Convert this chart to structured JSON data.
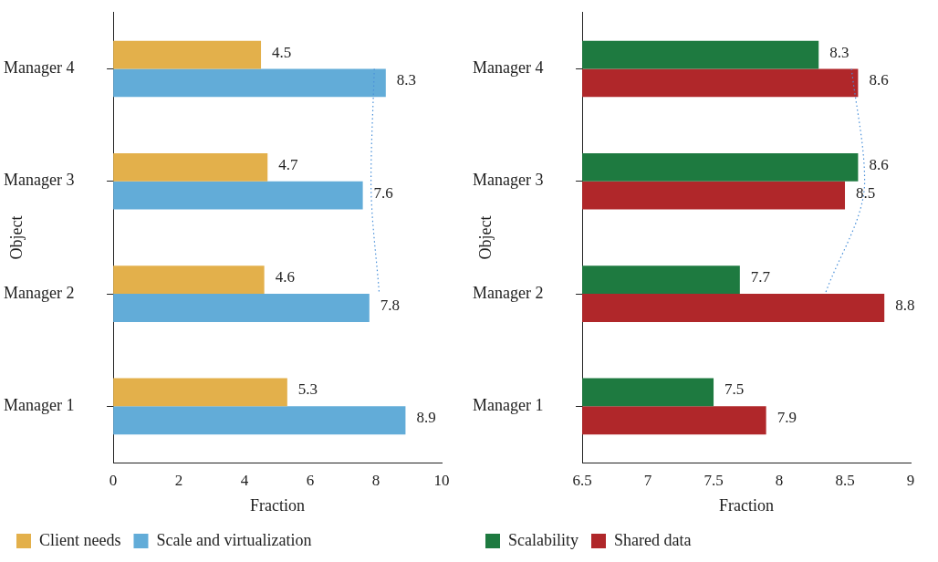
{
  "chart_data": [
    {
      "type": "bar",
      "orientation": "horizontal",
      "xlabel": "Fraction",
      "ylabel": "Object",
      "categories": [
        "Manager 4",
        "Manager 3",
        "Manager 2",
        "Manager 1"
      ],
      "xlim": [
        0,
        10
      ],
      "xticks": [
        0,
        2,
        4,
        6,
        8,
        10
      ],
      "grid": false,
      "legend": "bottom left",
      "series": [
        {
          "name": "Client needs",
          "color": "#e3b04b",
          "values": [
            4.5,
            4.7,
            4.6,
            5.3
          ],
          "value_labels": [
            "4.5",
            "4.7",
            "4.6",
            "5.3"
          ]
        },
        {
          "name": "Scale and virtualization",
          "color": "#62acd8",
          "values": [
            8.3,
            7.6,
            7.8,
            8.9
          ],
          "value_labels": [
            "8.3",
            "7.6",
            "7.8",
            "8.9"
          ]
        },
        {
          "type": "line",
          "color": "#4a90d9",
          "line_style": "dotted",
          "marker": "none",
          "values": [
            7.95,
            7.85,
            8.1,
            null
          ]
        }
      ]
    },
    {
      "type": "bar",
      "orientation": "horizontal",
      "xlabel": "Fraction",
      "ylabel": "Object",
      "categories": [
        "Manager 4",
        "Manager 3",
        "Manager 2",
        "Manager 1"
      ],
      "xlim": [
        6.5,
        9
      ],
      "xticks": [
        6.5,
        7,
        7.5,
        8,
        8.5,
        9
      ],
      "grid": false,
      "legend": "bottom left",
      "series": [
        {
          "name": "Scalability",
          "color": "#1e7a40",
          "values": [
            8.3,
            8.6,
            7.7,
            7.5
          ],
          "value_labels": [
            "8.3",
            "8.6",
            "7.7",
            "7.5"
          ]
        },
        {
          "name": "Shared data",
          "color": "#b0272a",
          "values": [
            8.6,
            8.5,
            8.8,
            7.9
          ],
          "value_labels": [
            "8.6",
            "8.5",
            "8.8",
            "7.9"
          ]
        },
        {
          "type": "line",
          "color": "#4a90d9",
          "line_style": "dotted",
          "marker": "none",
          "values": [
            8.55,
            8.65,
            8.35,
            null
          ]
        }
      ]
    }
  ]
}
